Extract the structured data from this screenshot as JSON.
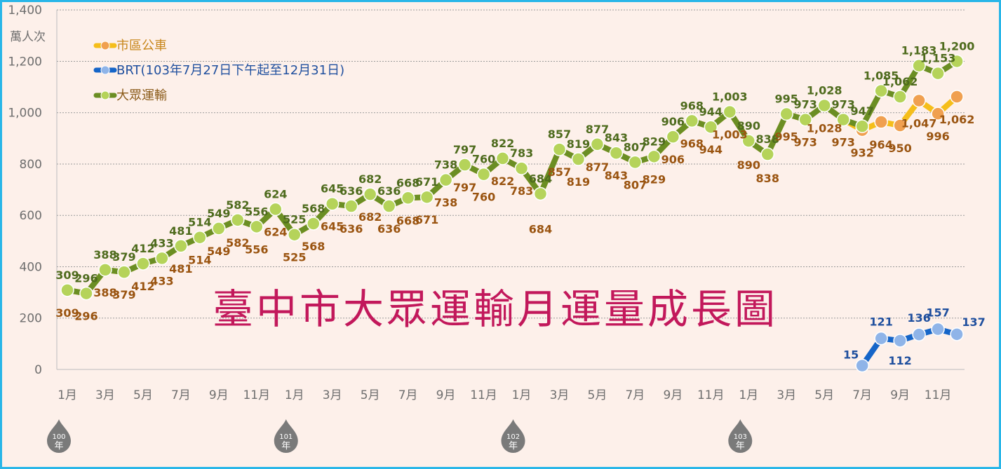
{
  "chart_data": {
    "type": "line",
    "title": "臺中市大眾運輸月運量成長圖",
    "ylabel": "萬人次",
    "ylim": [
      0,
      1400
    ],
    "yticks": [
      "0",
      "200",
      "400",
      "600",
      "800",
      "1,000",
      "1,200",
      "1,400"
    ],
    "grid": true,
    "legend_position": "top-left",
    "x_month_labels": [
      "1月",
      "3月",
      "5月",
      "7月",
      "9月",
      "11月",
      "1月",
      "3月",
      "5月",
      "7月",
      "9月",
      "11月",
      "1月",
      "3月",
      "5月",
      "7月",
      "9月",
      "11月",
      "1月",
      "3月",
      "5月",
      "7月",
      "9月",
      "11月"
    ],
    "year_markers": [
      {
        "num": "100",
        "word": "年"
      },
      {
        "num": "101",
        "word": "年"
      },
      {
        "num": "102",
        "word": "年"
      },
      {
        "num": "103",
        "word": "年"
      }
    ],
    "series": [
      {
        "name": "市區公車",
        "color": "#f5be1a",
        "marker_color": "#f0a050",
        "start_index": 0,
        "values": [
          309,
          296,
          388,
          379,
          412,
          433,
          481,
          514,
          549,
          582,
          556,
          624,
          525,
          568,
          645,
          636,
          682,
          636,
          668,
          671,
          738,
          797,
          760,
          822,
          783,
          684,
          857,
          819,
          877,
          843,
          807,
          829,
          906,
          968,
          944,
          1003,
          890,
          838,
          995,
          973,
          1028,
          973,
          932,
          964,
          950,
          1047,
          996,
          1062
        ],
        "labels": [
          "309",
          "296",
          "388",
          "379",
          "412",
          "433",
          "481",
          "514",
          "549",
          "582",
          "556",
          "624",
          "525",
          "568",
          "645",
          "636",
          "682",
          "636",
          "668",
          "671",
          "738",
          "797",
          "760",
          "822",
          "783",
          "684",
          "857",
          "819",
          "877",
          "843",
          "807",
          "829",
          "906",
          "968",
          "944",
          "1,003",
          "890",
          "838",
          "995",
          "973",
          "1,028",
          "973",
          "932",
          "964",
          "950",
          "1,047",
          "996",
          "1,062"
        ]
      },
      {
        "name": "BRT(103年7月27日下午起至12月31日)",
        "color": "#1565c8",
        "marker_color": "#8fb4e8",
        "start_index": 42,
        "values": [
          15,
          121,
          112,
          136,
          157,
          137
        ],
        "labels": [
          "15",
          "121",
          "112",
          "136",
          "157",
          "137"
        ]
      },
      {
        "name": "大眾運輸",
        "color": "#6b8e23",
        "marker_color": "#b5d35a",
        "start_index": 0,
        "values": [
          309,
          296,
          388,
          379,
          412,
          433,
          481,
          514,
          549,
          582,
          556,
          624,
          525,
          568,
          645,
          636,
          682,
          636,
          668,
          671,
          738,
          797,
          760,
          822,
          783,
          684,
          857,
          819,
          877,
          843,
          807,
          829,
          906,
          968,
          944,
          1003,
          890,
          838,
          995,
          973,
          1028,
          973,
          947,
          1085,
          1062,
          1183,
          1153,
          1200
        ],
        "labels": [
          "309",
          "296",
          "388",
          "379",
          "412",
          "433",
          "481",
          "514",
          "549",
          "582",
          "556",
          "624",
          "525",
          "568",
          "645",
          "636",
          "682",
          "636",
          "668",
          "671",
          "738",
          "797",
          "760",
          "822",
          "783",
          "684",
          "857",
          "819",
          "877",
          "843",
          "807",
          "829",
          "906",
          "968",
          "944",
          "1,003",
          "890",
          "838",
          "995",
          "973",
          "1,028",
          "973",
          "947",
          "1,085",
          "1,062",
          "1,183",
          "1,153",
          "1,200"
        ]
      }
    ]
  }
}
